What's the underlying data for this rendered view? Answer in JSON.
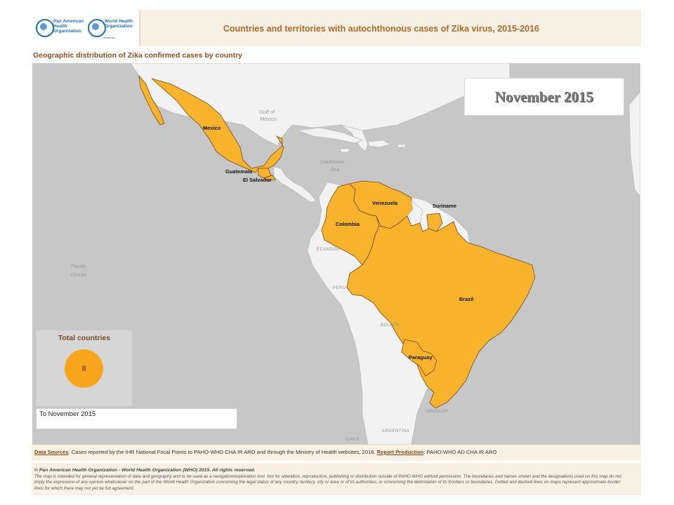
{
  "header": {
    "logo_paho": "Pan American Health Organization",
    "logo_who": "World Health Organization",
    "logo_who_region": "Americas",
    "title": "Countries and territories with autochthonous cases of Zika virus, 2015-2016"
  },
  "map": {
    "subtitle": "Geographic distribution of Zika confirmed cases by country",
    "month_banner": "November 2015",
    "highlight_color": "#f7b32b",
    "land_color": "#f2f2f2",
    "water_color": "#c7c7c7",
    "affected_countries": [
      "Mexico",
      "Guatemala",
      "El Salvador",
      "Colombia",
      "Venezuela",
      "Suriname",
      "Brazil",
      "Paraguay"
    ],
    "other_labels": {
      "ecuador": "ECUADOR",
      "peru": "PERU",
      "bolivia": "BOLIVIA",
      "chile": "CHILE",
      "argentina": "ARGENTINA",
      "uruguay": "URUGUAY"
    },
    "water_labels": {
      "gulf_line1": "Gulf of",
      "gulf_line2": "Mexico",
      "caribbean_line1": "Caribbean",
      "caribbean_line2": "Sea",
      "pacific_line1": "Pacific",
      "pacific_line2": "Ocean"
    }
  },
  "summary": {
    "total_label": "Total countries",
    "total_count": "8",
    "period": "To November 2015"
  },
  "footer": {
    "sources_label": "Data Sources",
    "sources_text": ": Cases reported by the IHR National Focal Points to PAHO-WHO CHA IR ARO and through the Ministry of Health websites, 2016. ",
    "production_label": "Report Production",
    "production_text": ": PAHO-WHO AD CHA IR ARO",
    "copyright": "© Pan American Health Organization - World Health Organization (WHO) 2015. All rights reserved.",
    "disclaimer": "The map is intended for general representation of data and geography and to be used as a navigation/exploration tool. Not for alteration, reproduction, publishing or distribution outside of PAHO-WHO without permission. The boundaries and names shown and the designations used on this map do not imply the expression of any opinion whatsoever on the part of the World Health Organization concerning the legal status of any country, territory, city or area or of its authorities, or concerning the delimitation of its frontiers or boundaries. Dotted and dashed lines on maps represent approximate border lines for which there may not yet be full agreement."
  }
}
